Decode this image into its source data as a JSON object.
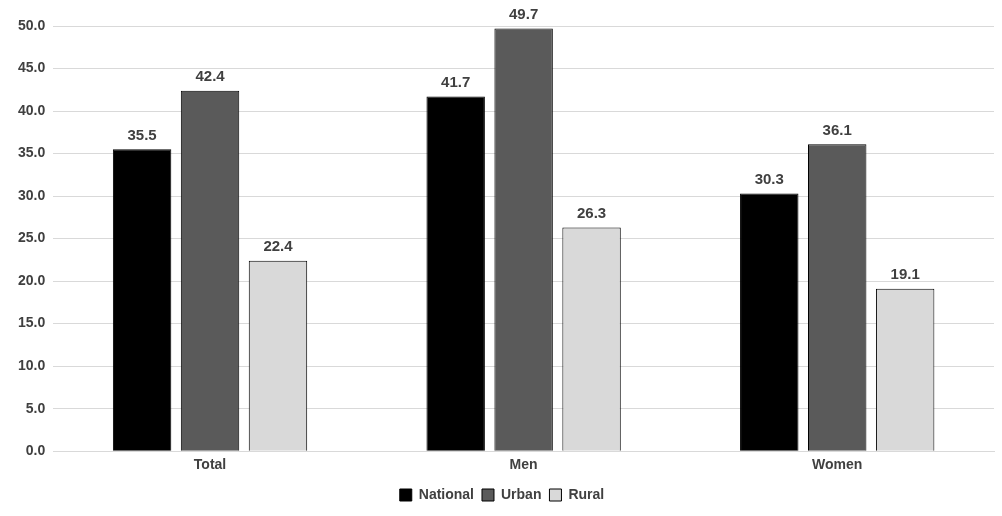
{
  "chart_data": {
    "type": "bar",
    "categories": [
      "Total",
      "Men",
      "Women"
    ],
    "series": [
      {
        "name": "National",
        "color": "#000000",
        "values": [
          35.5,
          41.7,
          30.3
        ]
      },
      {
        "name": "Urban",
        "color": "#5a5a5a",
        "values": [
          42.4,
          49.7,
          36.1
        ]
      },
      {
        "name": "Rural",
        "color": "#d9d9d9",
        "values": [
          22.4,
          26.3,
          19.1
        ]
      }
    ],
    "ylim": [
      0,
      50
    ],
    "yticks": [
      {
        "value": 0,
        "label": "0.0"
      },
      {
        "value": 5,
        "label": "5.0"
      },
      {
        "value": 10,
        "label": "10.0"
      },
      {
        "value": 15,
        "label": "15.0"
      },
      {
        "value": 20,
        "label": "20.0"
      },
      {
        "value": 25,
        "label": "25.0"
      },
      {
        "value": 30,
        "label": "30.0"
      },
      {
        "value": 35,
        "label": "35.0"
      },
      {
        "value": 40,
        "label": "40.0"
      },
      {
        "value": 45,
        "label": "45.0"
      },
      {
        "value": 50,
        "label": "50.0"
      }
    ],
    "grid": "y",
    "legend": "bottom",
    "data_labels": true
  }
}
